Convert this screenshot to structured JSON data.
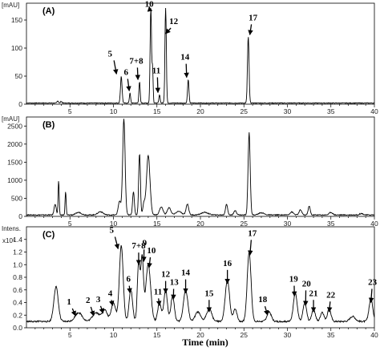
{
  "chart_data": [
    {
      "type": "line",
      "panel_label": "(A)",
      "y_unit": "[mAU]",
      "xlim": [
        0,
        40
      ],
      "ylim": [
        0,
        180
      ],
      "x_ticks": [
        "5",
        "10",
        "15",
        "20",
        "25",
        "30",
        "35",
        "40"
      ],
      "y_ticks": [
        "0",
        "50",
        "100",
        "150"
      ],
      "y_tick_values": [
        0,
        50,
        100,
        150
      ],
      "baseline": 2,
      "noise": 0.6,
      "peaks": [
        {
          "t": 3.6,
          "h": 4,
          "w": 0.08
        },
        {
          "t": 4.0,
          "h": 3,
          "w": 0.08
        },
        {
          "t": 10.9,
          "h": 48,
          "w": 0.09
        },
        {
          "t": 11.9,
          "h": 18,
          "w": 0.07
        },
        {
          "t": 13.0,
          "h": 38,
          "w": 0.07
        },
        {
          "t": 14.3,
          "h": 170,
          "w": 0.08
        },
        {
          "t": 14.5,
          "h": 60,
          "w": 0.06
        },
        {
          "t": 15.3,
          "h": 15,
          "w": 0.07
        },
        {
          "t": 16.0,
          "h": 170,
          "w": 0.08
        },
        {
          "t": 18.6,
          "h": 42,
          "w": 0.08
        },
        {
          "t": 25.5,
          "h": 118,
          "w": 0.09
        }
      ],
      "annotations": [
        {
          "text": "5",
          "x": 10.9,
          "y": 48
        },
        {
          "text": "6",
          "x": 12.0,
          "y": 18
        },
        {
          "text": "7+8",
          "x": 13.0,
          "y": 38
        },
        {
          "text": "10",
          "x": 14.3,
          "y": 168
        },
        {
          "text": "11",
          "x": 15.3,
          "y": 15
        },
        {
          "text": "12",
          "x": 16.0,
          "y": 120
        },
        {
          "text": "14",
          "x": 18.6,
          "y": 42
        },
        {
          "text": "17",
          "x": 25.5,
          "y": 118
        }
      ]
    },
    {
      "type": "line",
      "panel_label": "(B)",
      "y_unit": "[mAU]",
      "xlim": [
        0,
        40
      ],
      "ylim": [
        0,
        2750
      ],
      "x_ticks": [
        "5",
        "10",
        "15",
        "20",
        "25",
        "30",
        "35",
        "40"
      ],
      "y_ticks": [
        "0",
        "500",
        "1000",
        "1500",
        "2000",
        "2500"
      ],
      "y_tick_values": [
        0,
        500,
        1000,
        1500,
        2000,
        2500
      ],
      "baseline": 40,
      "noise": 12,
      "peaks": [
        {
          "t": 3.3,
          "h": 300,
          "w": 0.12
        },
        {
          "t": 3.7,
          "h": 950,
          "w": 0.06
        },
        {
          "t": 4.5,
          "h": 650,
          "w": 0.06
        },
        {
          "t": 6.0,
          "h": 70,
          "w": 0.3
        },
        {
          "t": 8.5,
          "h": 90,
          "w": 0.3
        },
        {
          "t": 10.7,
          "h": 380,
          "w": 0.15
        },
        {
          "t": 11.2,
          "h": 2650,
          "w": 0.14
        },
        {
          "t": 12.3,
          "h": 650,
          "w": 0.1
        },
        {
          "t": 13.0,
          "h": 1700,
          "w": 0.1
        },
        {
          "t": 13.5,
          "h": 300,
          "w": 0.12
        },
        {
          "t": 14.0,
          "h": 1650,
          "w": 0.2
        },
        {
          "t": 15.5,
          "h": 220,
          "w": 0.2
        },
        {
          "t": 16.4,
          "h": 200,
          "w": 0.2
        },
        {
          "t": 17.5,
          "h": 100,
          "w": 0.3
        },
        {
          "t": 18.5,
          "h": 300,
          "w": 0.15
        },
        {
          "t": 20.5,
          "h": 70,
          "w": 0.4
        },
        {
          "t": 23.0,
          "h": 300,
          "w": 0.12
        },
        {
          "t": 24.0,
          "h": 120,
          "w": 0.15
        },
        {
          "t": 25.6,
          "h": 2280,
          "w": 0.12
        },
        {
          "t": 27.0,
          "h": 60,
          "w": 0.3
        },
        {
          "t": 30.5,
          "h": 80,
          "w": 0.2
        },
        {
          "t": 31.5,
          "h": 140,
          "w": 0.15
        },
        {
          "t": 32.5,
          "h": 240,
          "w": 0.12
        },
        {
          "t": 35.0,
          "h": 70,
          "w": 0.2
        },
        {
          "t": 38.5,
          "h": 40,
          "w": 0.2
        }
      ],
      "annotations": []
    },
    {
      "type": "line",
      "panel_label": "(C)",
      "y_unit": "Intens.",
      "y_multiplier": "x10⁶",
      "xlim": [
        0,
        40
      ],
      "ylim": [
        0,
        1.6
      ],
      "x_ticks": [
        "5",
        "10",
        "15",
        "20",
        "25",
        "30",
        "35",
        "40"
      ],
      "y_ticks": [
        "0.0",
        "0.2",
        "0.4",
        "0.6",
        "0.8",
        "1.0",
        "1.2",
        "1.4"
      ],
      "y_tick_values": [
        0.0,
        0.2,
        0.4,
        0.6,
        0.8,
        1.0,
        1.2,
        1.4
      ],
      "baseline": 0.1,
      "noise": 0.012,
      "peaks": [
        {
          "t": 3.4,
          "h": 0.55,
          "w": 0.25
        },
        {
          "t": 6.0,
          "h": 0.14,
          "w": 0.4
        },
        {
          "t": 8.0,
          "h": 0.14,
          "w": 0.4
        },
        {
          "t": 9.0,
          "h": 0.18,
          "w": 0.3
        },
        {
          "t": 10.0,
          "h": 0.3,
          "w": 0.25
        },
        {
          "t": 10.9,
          "h": 1.2,
          "w": 0.22
        },
        {
          "t": 12.0,
          "h": 0.5,
          "w": 0.2
        },
        {
          "t": 12.9,
          "h": 0.95,
          "w": 0.15
        },
        {
          "t": 13.3,
          "h": 1.0,
          "w": 0.15
        },
        {
          "t": 14.0,
          "h": 0.9,
          "w": 0.28
        },
        {
          "t": 15.3,
          "h": 0.3,
          "w": 0.2
        },
        {
          "t": 16.0,
          "h": 0.5,
          "w": 0.2
        },
        {
          "t": 16.8,
          "h": 0.4,
          "w": 0.2
        },
        {
          "t": 18.3,
          "h": 0.5,
          "w": 0.25
        },
        {
          "t": 19.7,
          "h": 0.15,
          "w": 0.3
        },
        {
          "t": 21.0,
          "h": 0.2,
          "w": 0.3
        },
        {
          "t": 23.1,
          "h": 0.65,
          "w": 0.25
        },
        {
          "t": 24.0,
          "h": 0.2,
          "w": 0.2
        },
        {
          "t": 25.6,
          "h": 1.1,
          "w": 0.22
        },
        {
          "t": 27.9,
          "h": 0.15,
          "w": 0.25
        },
        {
          "t": 30.9,
          "h": 0.45,
          "w": 0.22
        },
        {
          "t": 32.0,
          "h": 0.3,
          "w": 0.2
        },
        {
          "t": 33.0,
          "h": 0.2,
          "w": 0.2
        },
        {
          "t": 34.0,
          "h": 0.15,
          "w": 0.2
        },
        {
          "t": 34.8,
          "h": 0.2,
          "w": 0.2
        },
        {
          "t": 37.5,
          "h": 0.08,
          "w": 0.3
        },
        {
          "t": 39.6,
          "h": 0.35,
          "w": 0.22
        }
      ],
      "annotations": [
        {
          "text": "1",
          "x": 6.0,
          "y": 0.14
        },
        {
          "text": "2",
          "x": 8.0,
          "y": 0.14
        },
        {
          "text": "3",
          "x": 9.0,
          "y": 0.18
        },
        {
          "text": "4",
          "x": 10.0,
          "y": 0.3
        },
        {
          "text": "5",
          "x": 10.9,
          "y": 1.2
        },
        {
          "text": "6",
          "x": 12.0,
          "y": 0.5
        },
        {
          "text": "7+8",
          "x": 12.9,
          "y": 0.95
        },
        {
          "text": "9",
          "x": 13.4,
          "y": 1.0
        },
        {
          "text": "10",
          "x": 14.0,
          "y": 0.9
        },
        {
          "text": "11",
          "x": 15.3,
          "y": 0.3
        },
        {
          "text": "12",
          "x": 16.0,
          "y": 0.5
        },
        {
          "text": "13",
          "x": 16.8,
          "y": 0.4
        },
        {
          "text": "14",
          "x": 18.3,
          "y": 0.5
        },
        {
          "text": "15",
          "x": 21.0,
          "y": 0.2
        },
        {
          "text": "16",
          "x": 23.1,
          "y": 0.65
        },
        {
          "text": "17",
          "x": 25.6,
          "y": 1.1
        },
        {
          "text": "18",
          "x": 27.9,
          "y": 0.15
        },
        {
          "text": "19",
          "x": 30.9,
          "y": 0.45
        },
        {
          "text": "20",
          "x": 32.0,
          "y": 0.3
        },
        {
          "text": "21",
          "x": 33.0,
          "y": 0.2
        },
        {
          "text": "22",
          "x": 34.8,
          "y": 0.2
        },
        {
          "text": "23",
          "x": 39.6,
          "y": 0.35
        }
      ]
    }
  ],
  "xlabel": "Time (min)"
}
